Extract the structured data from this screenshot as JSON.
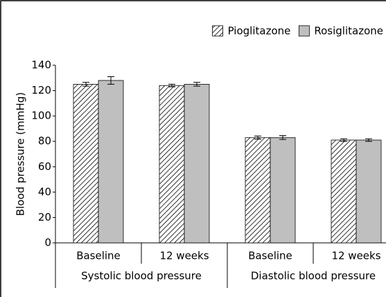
{
  "chart_data": {
    "type": "bar",
    "y_label": "Blood pressure (mmHg)",
    "categories": [
      "Baseline",
      "12 weeks",
      "Baseline",
      "12 weeks"
    ],
    "groups": [
      {
        "label": "Systolic blood pressure",
        "span": 2
      },
      {
        "label": "Diastolic blood pressure",
        "span": 2
      }
    ],
    "series": [
      {
        "name": "Pioglitazone",
        "color": "#000000",
        "pattern": "hatch",
        "values": [
          125,
          124,
          83,
          81
        ],
        "errors": [
          1.5,
          1,
          1.2,
          1
        ]
      },
      {
        "name": "Rosiglitazone",
        "color": "#bfbfbf",
        "pattern": "solid",
        "values": [
          128,
          125,
          83,
          81
        ],
        "errors": [
          3,
          1.5,
          1.5,
          1
        ]
      }
    ],
    "ylim": [
      0,
      140
    ],
    "yticks": [
      0,
      20,
      40,
      60,
      80,
      100,
      120,
      140
    ],
    "grid": false,
    "legend": "top-right"
  }
}
